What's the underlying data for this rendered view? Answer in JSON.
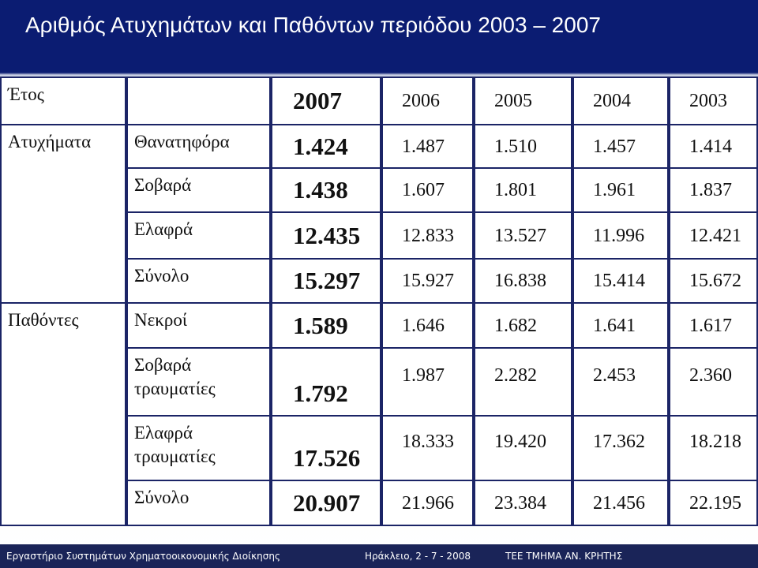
{
  "title": "Αριθμός Ατυχημάτων και Παθόντων περιόδου 2003 – 2007",
  "table": {
    "corner": "Έτος",
    "years": [
      "2007",
      "2006",
      "2005",
      "2004",
      "2003"
    ],
    "groups": [
      {
        "label": "Ατυχήματα",
        "rows": [
          {
            "label": "Θανατηφόρα",
            "values": [
              "1.424",
              "1.487",
              "1.510",
              "1.457",
              "1.414"
            ]
          },
          {
            "label": "Σοβαρά",
            "values": [
              "1.438",
              "1.607",
              "1.801",
              "1.961",
              "1.837"
            ]
          },
          {
            "label": "Ελαφρά",
            "values": [
              "12.435",
              "12.833",
              "13.527",
              "11.996",
              "12.421"
            ]
          },
          {
            "label": "Σύνολο",
            "values": [
              "15.297",
              "15.927",
              "16.838",
              "15.414",
              "15.672"
            ]
          }
        ]
      },
      {
        "label": "Παθόντες",
        "rows": [
          {
            "label": "Νεκροί",
            "values": [
              "1.589",
              "1.646",
              "1.682",
              "1.641",
              "1.617"
            ]
          },
          {
            "label": "Σοβαρά τραυματίες",
            "values": [
              "1.792",
              "1.987",
              "2.282",
              "2.453",
              "2.360"
            ]
          },
          {
            "label": "Ελαφρά τραυματίες",
            "values": [
              "17.526",
              "18.333",
              "19.420",
              "17.362",
              "18.218"
            ]
          },
          {
            "label": "Σύνολο",
            "values": [
              "20.907",
              "21.966",
              "23.384",
              "21.456",
              "22.195"
            ]
          }
        ]
      }
    ]
  },
  "footer": {
    "left": "Εργαστήριο Συστημάτων Χρηματοοικονομικής Διοίκησης",
    "date": "Ηράκλειο, 2 - 7 - 2008",
    "org": "ΤΕΕ ΤΜΗΜΑ ΑΝ. ΚΡΗΤΗΣ"
  }
}
